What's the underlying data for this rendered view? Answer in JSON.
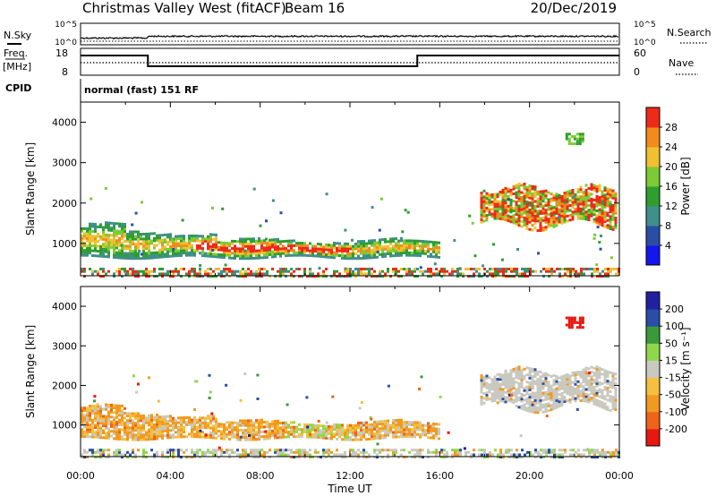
{
  "header": {
    "station": "Christmas Valley West (fitACF)",
    "beam": "Beam 16",
    "date": "20/Dec/2019",
    "program": "normal (fast) 151 RF"
  },
  "side_labels": {
    "nsky": "N.Sky",
    "freq": "Freq.",
    "freq_unit": "[MHz]",
    "cpid": "CPID",
    "nsearch": "N.Search",
    "nave": "Nave"
  },
  "top_axes": {
    "nsky_ticks": [
      "10^5",
      "10^0"
    ],
    "nsearch_ticks": [
      "10^5",
      "10^0"
    ],
    "freq_ticks": [
      "18",
      "8"
    ],
    "nave_ticks": [
      "60",
      "0"
    ]
  },
  "colors": {
    "power": [
      "#1515ee",
      "#2a4ea6",
      "#3f8f8a",
      "#2e9e2e",
      "#7ccb35",
      "#f0c030",
      "#f28a1c",
      "#ee2a18"
    ],
    "velocity": [
      "#e81810",
      "#ee6418",
      "#f29a20",
      "#f5c040",
      "#c9c9c0",
      "#8fd84a",
      "#3a9a3a",
      "#2a4ea6",
      "#2020a0"
    ]
  },
  "chart_data": [
    {
      "type": "heatmap",
      "quantity": "Power",
      "ylabel": "Slant Range [km]",
      "cbar_label": "Power [dB]",
      "cbar_ticks": [
        "28",
        "24",
        "20",
        "16",
        "12",
        "8",
        "4"
      ],
      "y_ticks": [
        "4000",
        "3000",
        "2000",
        "1000"
      ],
      "ylim": [
        200,
        4500
      ],
      "xlim": [
        0,
        24
      ],
      "regions": [
        {
          "t0": 0.0,
          "t1": 16.0,
          "r_lo": 700,
          "r_hi": 1300,
          "note": "main scatter band",
          "peak_db": 28
        },
        {
          "t0": 17.8,
          "t1": 23.8,
          "r_lo": 1400,
          "r_hi": 2500,
          "note": "late band",
          "peak_db": 28
        },
        {
          "t0": 21.6,
          "t1": 22.4,
          "r_lo": 3500,
          "r_hi": 3800,
          "peak_db": 12
        },
        {
          "t0": 0.0,
          "t1": 24.0,
          "r_lo": 200,
          "r_hi": 400,
          "note": "near-range ground scatter",
          "peak_db": 20
        }
      ]
    },
    {
      "type": "heatmap",
      "quantity": "Velocity",
      "ylabel": "Slant Range [km]",
      "cbar_label": "Velocity [m s⁻¹]",
      "cbar_ticks": [
        "200",
        "100",
        "50",
        "15",
        "-15",
        "-50",
        "-100",
        "-200"
      ],
      "y_ticks": [
        "4000",
        "3000",
        "2000",
        "1000"
      ],
      "ylim": [
        200,
        4500
      ],
      "xlim": [
        0,
        24
      ],
      "x_ticks": [
        "00:00",
        "04:00",
        "08:00",
        "12:00",
        "16:00",
        "20:00",
        "00:00"
      ],
      "xlabel": "Time UT"
    }
  ]
}
